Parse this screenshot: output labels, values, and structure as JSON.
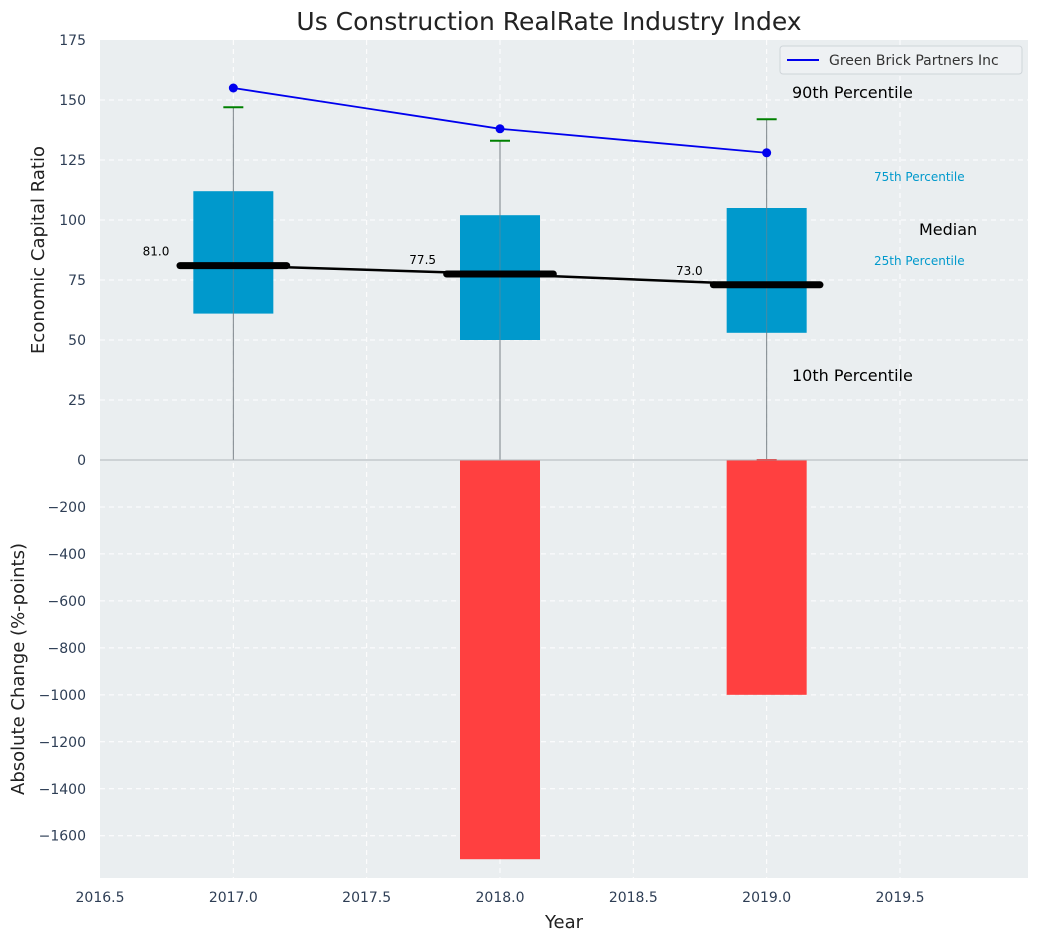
{
  "chart_data": {
    "title": "Us Construction RealRate Industry Index",
    "xlabel": "Year",
    "x_ticks": [
      "2016.5",
      "2017.0",
      "2017.5",
      "2018.0",
      "2018.5",
      "2019.0",
      "2019.5"
    ],
    "xlim": [
      2016.5,
      2019.98
    ],
    "grid": true,
    "colors": {
      "box": "#0099cc",
      "company_line": "#0000ee",
      "median": "#000000",
      "p90": "#008000",
      "p10": "#ff0000",
      "change_bar": "#ff4040",
      "background": "#eaeef0",
      "whisker": "#7a8288"
    },
    "panels": [
      {
        "type": "box",
        "ylabel": "Economic Capital Ratio",
        "ylim": [
          0,
          175
        ],
        "y_ticks": [
          "0",
          "25",
          "50",
          "75",
          "100",
          "125",
          "150",
          "175"
        ],
        "x": [
          2017,
          2018,
          2019
        ],
        "p10": [
          0,
          0,
          0
        ],
        "p25": [
          61,
          50,
          53
        ],
        "median": [
          81.0,
          77.5,
          73.0
        ],
        "median_labels": [
          "81.0",
          "77.5",
          "73.0"
        ],
        "p75": [
          112,
          102,
          105
        ],
        "p90": [
          147,
          133,
          142
        ],
        "series": [
          {
            "name": "Green Brick Partners Inc",
            "type": "line",
            "x": [
              2017,
              2018,
              2019
            ],
            "values": [
              155,
              138,
              128
            ]
          }
        ],
        "legend": {
          "position": "top-right",
          "entries": [
            "Green Brick Partners Inc"
          ]
        },
        "annotations": {
          "p90": "90th Percentile",
          "p75": "75th Percentile",
          "median": "Median",
          "p25": "25th Percentile",
          "p10": "10th Percentile"
        }
      },
      {
        "type": "bar",
        "ylabel": "Absolute Change (%-points)",
        "ylim": [
          -1780,
          0
        ],
        "y_ticks": [
          "0",
          "−200",
          "−400",
          "−600",
          "−800",
          "−1000",
          "−1200",
          "−1400",
          "−1600"
        ],
        "x": [
          2017,
          2018,
          2019
        ],
        "values": [
          0,
          -1700,
          -1000
        ]
      }
    ]
  }
}
